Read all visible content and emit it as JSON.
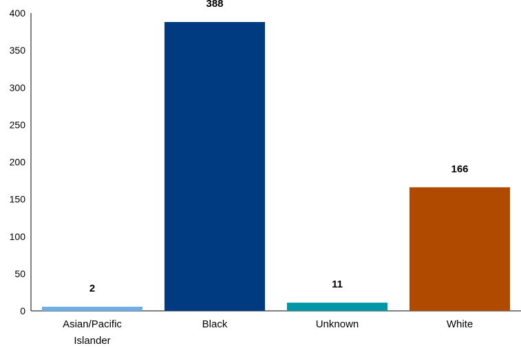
{
  "chart_data": {
    "type": "bar",
    "categories": [
      [
        "Asian/Pacific",
        "Islander"
      ],
      [
        "Black"
      ],
      [
        "Unknown"
      ],
      [
        "White"
      ]
    ],
    "values": [
      2,
      388,
      11,
      166
    ],
    "data_labels": [
      "2",
      "388",
      "11",
      "166"
    ],
    "colors": [
      "#6daee8",
      "#003a80",
      "#0097a7",
      "#b04a00"
    ],
    "ylim": [
      0,
      400
    ],
    "yticks": [
      0,
      50,
      100,
      150,
      200,
      250,
      300,
      350,
      400
    ],
    "ytick_labels": [
      "0",
      "50",
      "100",
      "150",
      "200",
      "250",
      "300",
      "350",
      "400"
    ],
    "grid": false,
    "title": "",
    "xlabel": "",
    "ylabel": ""
  }
}
